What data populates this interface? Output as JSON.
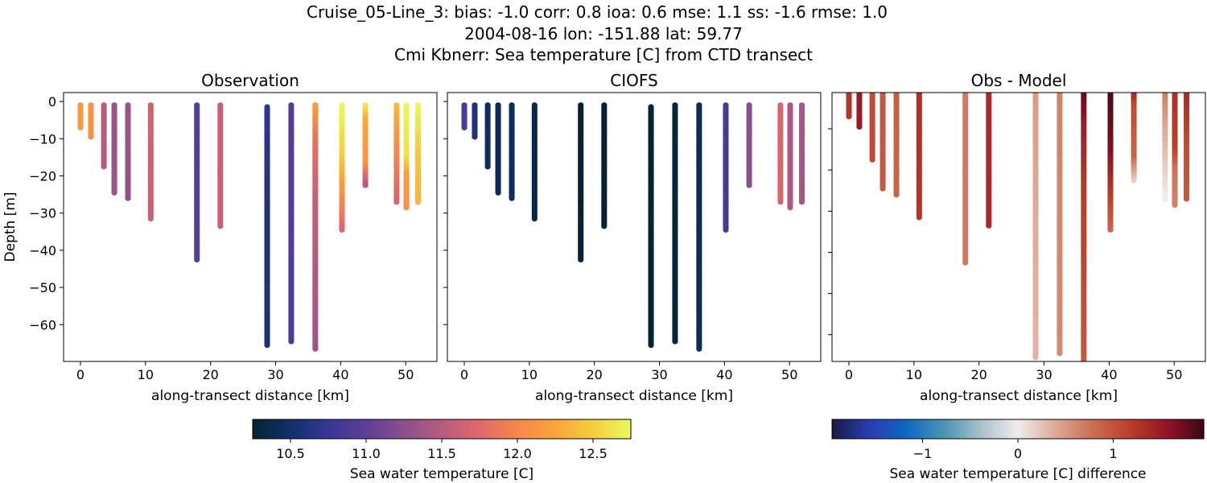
{
  "title_lines": [
    "Cruise_05-Line_3: bias: -1.0  corr: 0.8  ioa: 0.6  mse: 1.1  ss: -1.6  rmse: 1.0",
    "2004-08-16 lon: -151.88 lat: 59.77",
    "Cmi Kbnerr: Sea temperature [C] from CTD transect"
  ],
  "chart_data": [
    {
      "type": "scatter",
      "title": "Observation",
      "xlabel": "along-transect distance [km]",
      "ylabel": "Depth [m]",
      "xlim": [
        -2.6,
        54.8
      ],
      "ylim": [
        -69.9,
        2.4
      ],
      "xticks": [
        0,
        10,
        20,
        30,
        40,
        50
      ],
      "yticks": [
        0,
        -10,
        -20,
        -30,
        -40,
        -50,
        -60
      ],
      "field": "obs",
      "colormap": "thermal",
      "clim": [
        10.25,
        12.75
      ]
    },
    {
      "type": "scatter",
      "title": "CIOFS",
      "xlabel": "along-transect distance [km]",
      "xlim": [
        -2.6,
        54.8
      ],
      "ylim": [
        -69.9,
        2.4
      ],
      "xticks": [
        0,
        10,
        20,
        30,
        40,
        50
      ],
      "yticks": [
        0,
        -10,
        -20,
        -30,
        -40,
        -50,
        -60
      ],
      "field": "model",
      "colormap": "thermal",
      "clim": [
        10.25,
        12.75
      ]
    },
    {
      "type": "scatter",
      "title": "Obs - Model",
      "xlabel": "along-transect distance [km]",
      "xlim": [
        -2.6,
        54.8
      ],
      "ylim": [
        -66.5,
        -1.2
      ],
      "xticks": [
        0,
        10,
        20,
        30,
        40,
        50
      ],
      "yticks": [
        -10,
        -20,
        -30,
        -40,
        -50,
        -60
      ],
      "field": "diff",
      "colormap": "balance",
      "clim": [
        -1.95,
        1.95
      ]
    }
  ],
  "profiles": [
    {
      "x": 0.0,
      "top": -1,
      "bottom": -7.0,
      "obs": [
        [
          -1,
          12.15
        ],
        [
          -7,
          12.15
        ]
      ],
      "model": [
        [
          -1,
          10.9
        ],
        [
          -7,
          10.9
        ]
      ]
    },
    {
      "x": 1.6,
      "top": -1,
      "bottom": -9.9,
      "obs": [
        [
          -1,
          12.1
        ],
        [
          -10,
          12.1
        ]
      ],
      "model": [
        [
          -1,
          10.6
        ],
        [
          -10,
          10.6
        ]
      ]
    },
    {
      "x": 3.6,
      "top": -1,
      "bottom": -17.8,
      "obs": [
        [
          -1,
          11.5
        ],
        [
          -18,
          11.5
        ]
      ],
      "model": [
        [
          -1,
          10.45
        ],
        [
          -18,
          10.45
        ]
      ]
    },
    {
      "x": 5.2,
      "top": -1,
      "bottom": -24.9,
      "obs": [
        [
          -1,
          11.35
        ],
        [
          -25,
          11.35
        ]
      ],
      "model": [
        [
          -1,
          10.4
        ],
        [
          -25,
          10.4
        ]
      ]
    },
    {
      "x": 7.3,
      "top": -1,
      "bottom": -26.0,
      "obs": [
        [
          -1,
          11.35
        ],
        [
          -26,
          11.3
        ]
      ],
      "model": [
        [
          -1,
          10.45
        ],
        [
          -26,
          10.45
        ]
      ]
    },
    {
      "x": 10.8,
      "top": -1,
      "bottom": -31.9,
      "obs": [
        [
          -1,
          11.65
        ],
        [
          -32,
          11.6
        ]
      ],
      "model": [
        [
          -1,
          10.35
        ],
        [
          -32,
          10.35
        ]
      ]
    },
    {
      "x": 17.9,
      "top": -1,
      "bottom": -42.7,
      "obs": [
        [
          -1,
          10.95
        ],
        [
          -43,
          10.95
        ]
      ],
      "model": [
        [
          -1,
          10.25
        ],
        [
          -43,
          10.25
        ]
      ]
    },
    {
      "x": 21.5,
      "top": -1,
      "bottom": -33.8,
      "obs": [
        [
          -1,
          11.6
        ],
        [
          -34,
          11.6
        ]
      ],
      "model": [
        [
          -1,
          10.25
        ],
        [
          -34,
          10.25
        ]
      ]
    },
    {
      "x": 28.7,
      "top": -1.5,
      "bottom": -65.8,
      "obs": [
        [
          -1.5,
          10.7
        ],
        [
          -30,
          10.6
        ],
        [
          -66,
          10.55
        ]
      ],
      "model": [
        [
          -1.5,
          10.22
        ],
        [
          -66,
          10.22
        ]
      ]
    },
    {
      "x": 32.4,
      "top": -1,
      "bottom": -64.7,
      "obs": [
        [
          -1,
          10.95
        ],
        [
          -65,
          10.9
        ]
      ],
      "model": [
        [
          -1,
          10.3
        ],
        [
          -65,
          10.3
        ]
      ]
    },
    {
      "x": 36.1,
      "top": -1,
      "bottom": -66.7,
      "obs": [
        [
          -1,
          12.2
        ],
        [
          -10,
          11.85
        ],
        [
          -25,
          11.6
        ],
        [
          -67,
          11.35
        ]
      ],
      "model": [
        [
          -1,
          10.4
        ],
        [
          -67,
          10.4
        ]
      ]
    },
    {
      "x": 40.2,
      "top": -1,
      "bottom": -34.8,
      "obs": [
        [
          -1,
          12.75
        ],
        [
          -15,
          12.5
        ],
        [
          -25,
          12.1
        ],
        [
          -35,
          11.7
        ]
      ],
      "model": [
        [
          -1,
          10.85
        ],
        [
          -35,
          10.85
        ]
      ]
    },
    {
      "x": 43.8,
      "top": -1,
      "bottom": -22.9,
      "obs": [
        [
          -1,
          12.7
        ],
        [
          -5,
          12.3
        ],
        [
          -17,
          12.1
        ],
        [
          -23,
          11.4
        ]
      ],
      "model": [
        [
          -1,
          11.25
        ],
        [
          -23,
          11.25
        ]
      ]
    },
    {
      "x": 48.6,
      "top": -1,
      "bottom": -27.0,
      "obs": [
        [
          -1,
          12.4
        ],
        [
          -10,
          12.1
        ],
        [
          -27,
          11.7
        ]
      ],
      "model": [
        [
          -1,
          11.7
        ],
        [
          -27,
          11.7
        ]
      ]
    },
    {
      "x": 50.1,
      "top": -1,
      "bottom": -28.9,
      "obs": [
        [
          -1,
          12.75
        ],
        [
          -15,
          12.6
        ],
        [
          -20,
          12.2
        ],
        [
          -29,
          12.1
        ]
      ],
      "model": [
        [
          -1,
          11.45
        ],
        [
          -29,
          11.45
        ]
      ]
    },
    {
      "x": 51.9,
      "top": -1,
      "bottom": -27.0,
      "obs": [
        [
          -1,
          12.75
        ],
        [
          -15,
          12.45
        ],
        [
          -27,
          12.35
        ]
      ],
      "model": [
        [
          -1,
          11.4
        ],
        [
          -27,
          11.4
        ]
      ]
    }
  ],
  "colorbars": [
    {
      "label": "Sea water temperature [C]",
      "colormap": "thermal",
      "clim": [
        10.25,
        12.75
      ],
      "ticks": [
        "10.5",
        "11.0",
        "11.5",
        "12.0",
        "12.5"
      ]
    },
    {
      "label": "Sea water temperature [C] difference",
      "colormap": "balance",
      "clim": [
        -1.95,
        1.95
      ],
      "ticks": [
        "−1",
        "0",
        "1"
      ]
    }
  ],
  "colormaps": {
    "thermal": [
      "#042333",
      "#13306a",
      "#373699",
      "#5e3f96",
      "#8a4f8e",
      "#b85b7e",
      "#e0696a",
      "#f7864d",
      "#fba33c",
      "#f4cd41",
      "#e8fa5b"
    ],
    "balance": [
      "#181c43",
      "#2b3bb2",
      "#0e67c2",
      "#4a93b3",
      "#a9c1c9",
      "#f1ecec",
      "#ddaa98",
      "#cb6e52",
      "#b93f28",
      "#921328",
      "#3c0912"
    ]
  }
}
